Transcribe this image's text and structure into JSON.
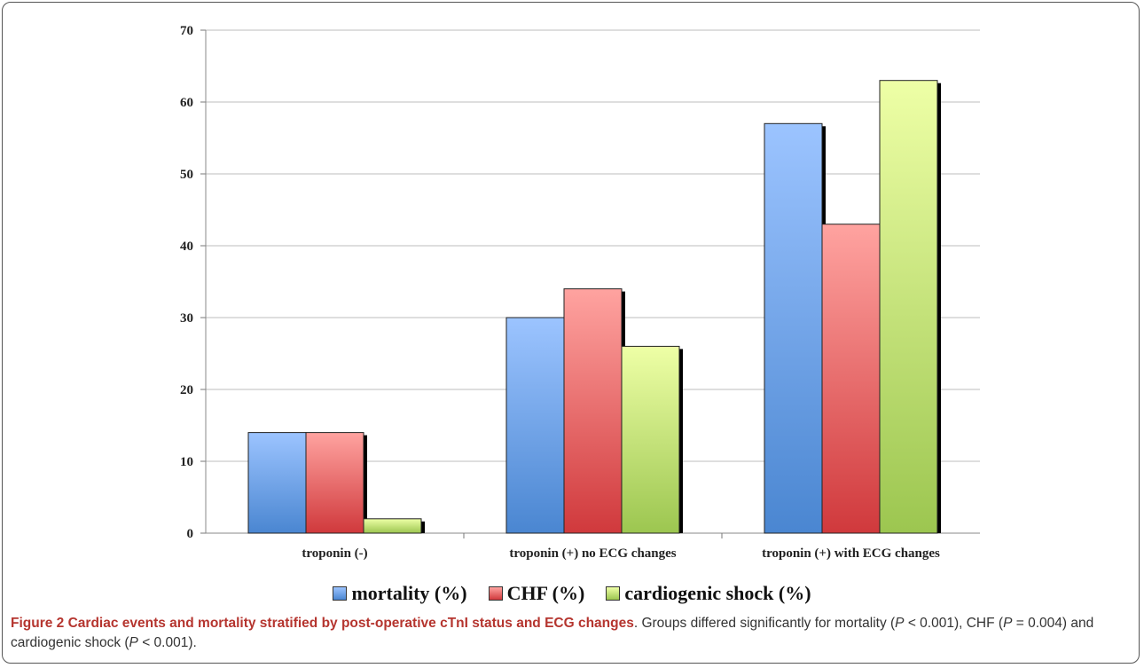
{
  "chart_data": {
    "type": "bar",
    "categories": [
      "troponin (-)",
      "troponin (+) no ECG changes",
      "troponin (+) with ECG changes"
    ],
    "series": [
      {
        "name": "mortality (%)",
        "values": [
          14,
          30,
          57
        ],
        "color": "#4a86d1",
        "color_light": "#9cc4ff"
      },
      {
        "name": "CHF (%)",
        "values": [
          14,
          34,
          43
        ],
        "color": "#d0393c",
        "color_light": "#ffa3a0"
      },
      {
        "name": "cardiogenic shock (%)",
        "values": [
          2,
          26,
          63
        ],
        "color": "#9cc650",
        "color_light": "#eeffa6"
      }
    ],
    "ylim": [
      0,
      70
    ],
    "yticks": [
      0,
      10,
      20,
      30,
      40,
      50,
      60,
      70
    ],
    "grid": true,
    "legend_position": "bottom",
    "title": "",
    "xlabel": "",
    "ylabel": ""
  },
  "caption": {
    "label": "Figure 2 Cardiac events and mortality stratified by post-operative cTnI status and ECG changes",
    "text_1": ". Groups differed significantly for mortality (",
    "p": "P",
    "text_2": " < 0.001), CHF (",
    "text_3": " = 0.004) and cardiogenic shock (",
    "text_4": " < 0.001)."
  }
}
